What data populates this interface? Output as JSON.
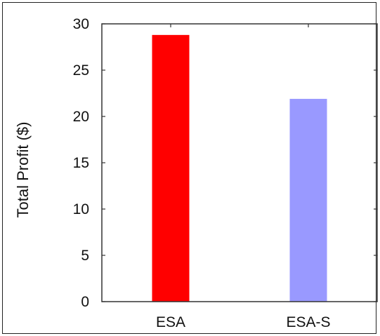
{
  "chart_data": {
    "type": "bar",
    "title": "",
    "xlabel": "",
    "ylabel": "Total Profit ($)",
    "categories": [
      "ESA",
      "ESA-S"
    ],
    "values": [
      28.8,
      21.9
    ],
    "colors": [
      "#ff0000",
      "#9999ff"
    ],
    "ylim": [
      0,
      30
    ],
    "yticks": [
      0,
      5,
      10,
      15,
      20,
      25,
      30
    ],
    "grid": false,
    "legend": "none"
  }
}
